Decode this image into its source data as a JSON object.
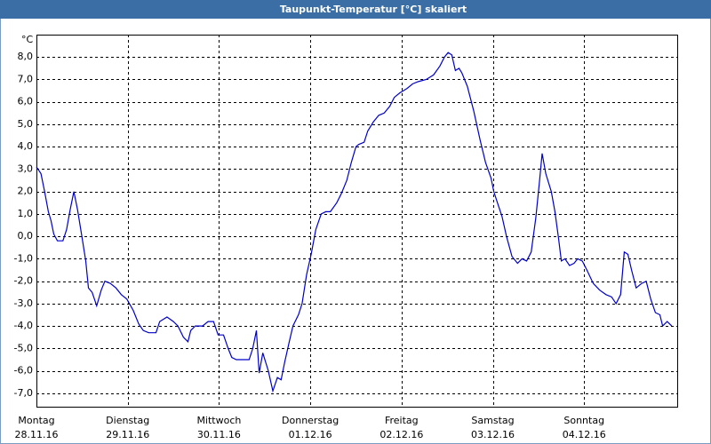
{
  "chart_data": {
    "type": "line",
    "title": "Taupunkt-Temperatur [°C] skaliert",
    "y_unit": "°C",
    "xlim": [
      0,
      7.02
    ],
    "ylim": [
      -7.6,
      9.0
    ],
    "xticks": [
      {
        "value": 0,
        "label": "Montag"
      },
      {
        "value": 1,
        "label": "Dienstag"
      },
      {
        "value": 2,
        "label": "Mittwoch"
      },
      {
        "value": 3,
        "label": "Donnerstag"
      },
      {
        "value": 4,
        "label": "Freitag"
      },
      {
        "value": 5,
        "label": "Samstag"
      },
      {
        "value": 6,
        "label": "Sonntag"
      }
    ],
    "xtick_dates": [
      "28.11.16",
      "29.11.16",
      "30.11.16",
      "01.12.16",
      "02.12.16",
      "03.12.16",
      "04.12.16"
    ],
    "yticks": [
      {
        "value": -7,
        "label": "-7,0"
      },
      {
        "value": -6,
        "label": "-6,0"
      },
      {
        "value": -5,
        "label": "-5,0"
      },
      {
        "value": -4,
        "label": "-4,0"
      },
      {
        "value": -3,
        "label": "-3,0"
      },
      {
        "value": -2,
        "label": "-2,0"
      },
      {
        "value": -1,
        "label": "-1,0"
      },
      {
        "value": 0,
        "label": "0,0"
      },
      {
        "value": 1,
        "label": "1,0"
      },
      {
        "value": 2,
        "label": "2,0"
      },
      {
        "value": 3,
        "label": "3,0"
      },
      {
        "value": 4,
        "label": "4,0"
      },
      {
        "value": 5,
        "label": "5,0"
      },
      {
        "value": 6,
        "label": "6,0"
      },
      {
        "value": 7,
        "label": "7,0"
      },
      {
        "value": 8,
        "label": "8,0"
      }
    ],
    "grid": true,
    "x": [
      0.0,
      0.05,
      0.09,
      0.13,
      0.16,
      0.19,
      0.23,
      0.29,
      0.33,
      0.37,
      0.41,
      0.45,
      0.49,
      0.54,
      0.57,
      0.61,
      0.66,
      0.71,
      0.75,
      0.81,
      0.87,
      0.93,
      0.99,
      1.06,
      1.12,
      1.17,
      1.23,
      1.31,
      1.35,
      1.43,
      1.5,
      1.55,
      1.61,
      1.66,
      1.69,
      1.74,
      1.82,
      1.88,
      1.94,
      1.99,
      2.05,
      2.1,
      2.14,
      2.19,
      2.25,
      2.33,
      2.37,
      2.41,
      2.44,
      2.48,
      2.54,
      2.59,
      2.64,
      2.68,
      2.72,
      2.77,
      2.81,
      2.87,
      2.91,
      2.96,
      3.01,
      3.06,
      3.12,
      3.17,
      3.22,
      3.29,
      3.34,
      3.4,
      3.45,
      3.5,
      3.53,
      3.59,
      3.63,
      3.69,
      3.75,
      3.81,
      3.87,
      3.92,
      3.98,
      4.06,
      4.12,
      4.18,
      4.27,
      4.35,
      4.42,
      4.47,
      4.51,
      4.55,
      4.59,
      4.63,
      4.66,
      4.72,
      4.79,
      4.86,
      4.92,
      4.98,
      5.01,
      5.05,
      5.1,
      5.15,
      5.21,
      5.27,
      5.32,
      5.37,
      5.42,
      5.47,
      5.51,
      5.54,
      5.58,
      5.64,
      5.68,
      5.72,
      5.75,
      5.79,
      5.84,
      5.89,
      5.93,
      5.98,
      6.03,
      6.1,
      6.17,
      6.24,
      6.3,
      6.35,
      6.4,
      6.44,
      6.48,
      6.52,
      6.57,
      6.63,
      6.68,
      6.73,
      6.78,
      6.83,
      6.86,
      6.91,
      6.96
    ],
    "series": [
      {
        "color": "#0000c8",
        "values": [
          3.1,
          2.8,
          2.0,
          1.1,
          0.7,
          0.1,
          -0.2,
          -0.2,
          0.3,
          1.2,
          2.0,
          1.2,
          0.2,
          -1.1,
          -2.3,
          -2.5,
          -3.1,
          -2.4,
          -2.0,
          -2.1,
          -2.3,
          -2.6,
          -2.8,
          -3.3,
          -3.9,
          -4.2,
          -4.3,
          -4.3,
          -3.8,
          -3.6,
          -3.8,
          -4.0,
          -4.5,
          -4.7,
          -4.2,
          -4.0,
          -4.0,
          -3.8,
          -3.8,
          -4.4,
          -4.4,
          -5.0,
          -5.4,
          -5.5,
          -5.5,
          -5.5,
          -5.0,
          -4.2,
          -6.1,
          -5.2,
          -6.0,
          -6.9,
          -6.3,
          -6.4,
          -5.6,
          -4.7,
          -4.0,
          -3.5,
          -3.0,
          -1.7,
          -0.8,
          0.3,
          1.0,
          1.1,
          1.1,
          1.5,
          1.9,
          2.5,
          3.3,
          4.0,
          4.1,
          4.2,
          4.7,
          5.1,
          5.4,
          5.5,
          5.8,
          6.2,
          6.4,
          6.6,
          6.8,
          6.9,
          7.0,
          7.2,
          7.6,
          8.0,
          8.2,
          8.1,
          7.4,
          7.5,
          7.3,
          6.7,
          5.6,
          4.3,
          3.3,
          2.6,
          2.0,
          1.5,
          0.9,
          0.0,
          -0.9,
          -1.2,
          -1.0,
          -1.1,
          -0.7,
          0.8,
          2.4,
          3.7,
          2.8,
          2.0,
          1.1,
          -0.1,
          -1.1,
          -1.0,
          -1.3,
          -1.2,
          -1.0,
          -1.1,
          -1.5,
          -2.1,
          -2.4,
          -2.6,
          -2.7,
          -3.0,
          -2.6,
          -0.7,
          -0.8,
          -1.5,
          -2.3,
          -2.1,
          -2.0,
          -2.8,
          -3.4,
          -3.5,
          -4.0,
          -3.8,
          -4.0
        ]
      }
    ]
  }
}
